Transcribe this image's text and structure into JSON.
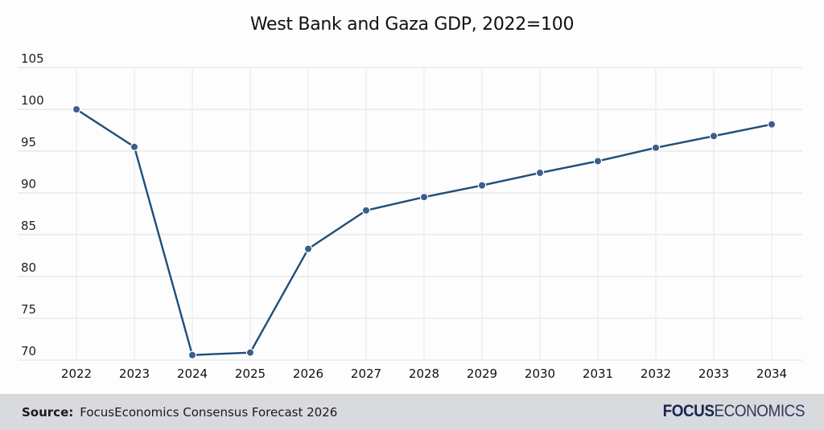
{
  "chart_data": {
    "type": "line",
    "title": "West Bank and Gaza GDP, 2022=100",
    "xlabel": "",
    "ylabel": "",
    "categories": [
      "2022",
      "2023",
      "2024",
      "2025",
      "2026",
      "2027",
      "2028",
      "2029",
      "2030",
      "2031",
      "2032",
      "2033",
      "2034"
    ],
    "series": [
      {
        "name": "West Bank and Gaza GDP",
        "values": [
          100.0,
          95.5,
          70.6,
          70.9,
          83.3,
          87.9,
          89.5,
          90.9,
          92.4,
          93.8,
          95.4,
          96.8,
          98.2
        ],
        "color": "#1f4e79",
        "marker_color": "#3a5f8c"
      }
    ],
    "ylim": [
      70,
      105
    ],
    "yticks": [
      70,
      75,
      80,
      85,
      90,
      95,
      100,
      105
    ],
    "grid": true,
    "legend": "none"
  },
  "footer": {
    "source_label": "Source:",
    "source_text": "FocusEconomics Consensus Forecast 2026",
    "logo_part1": "FOCUS",
    "logo_part2": "ECONOMICS"
  }
}
